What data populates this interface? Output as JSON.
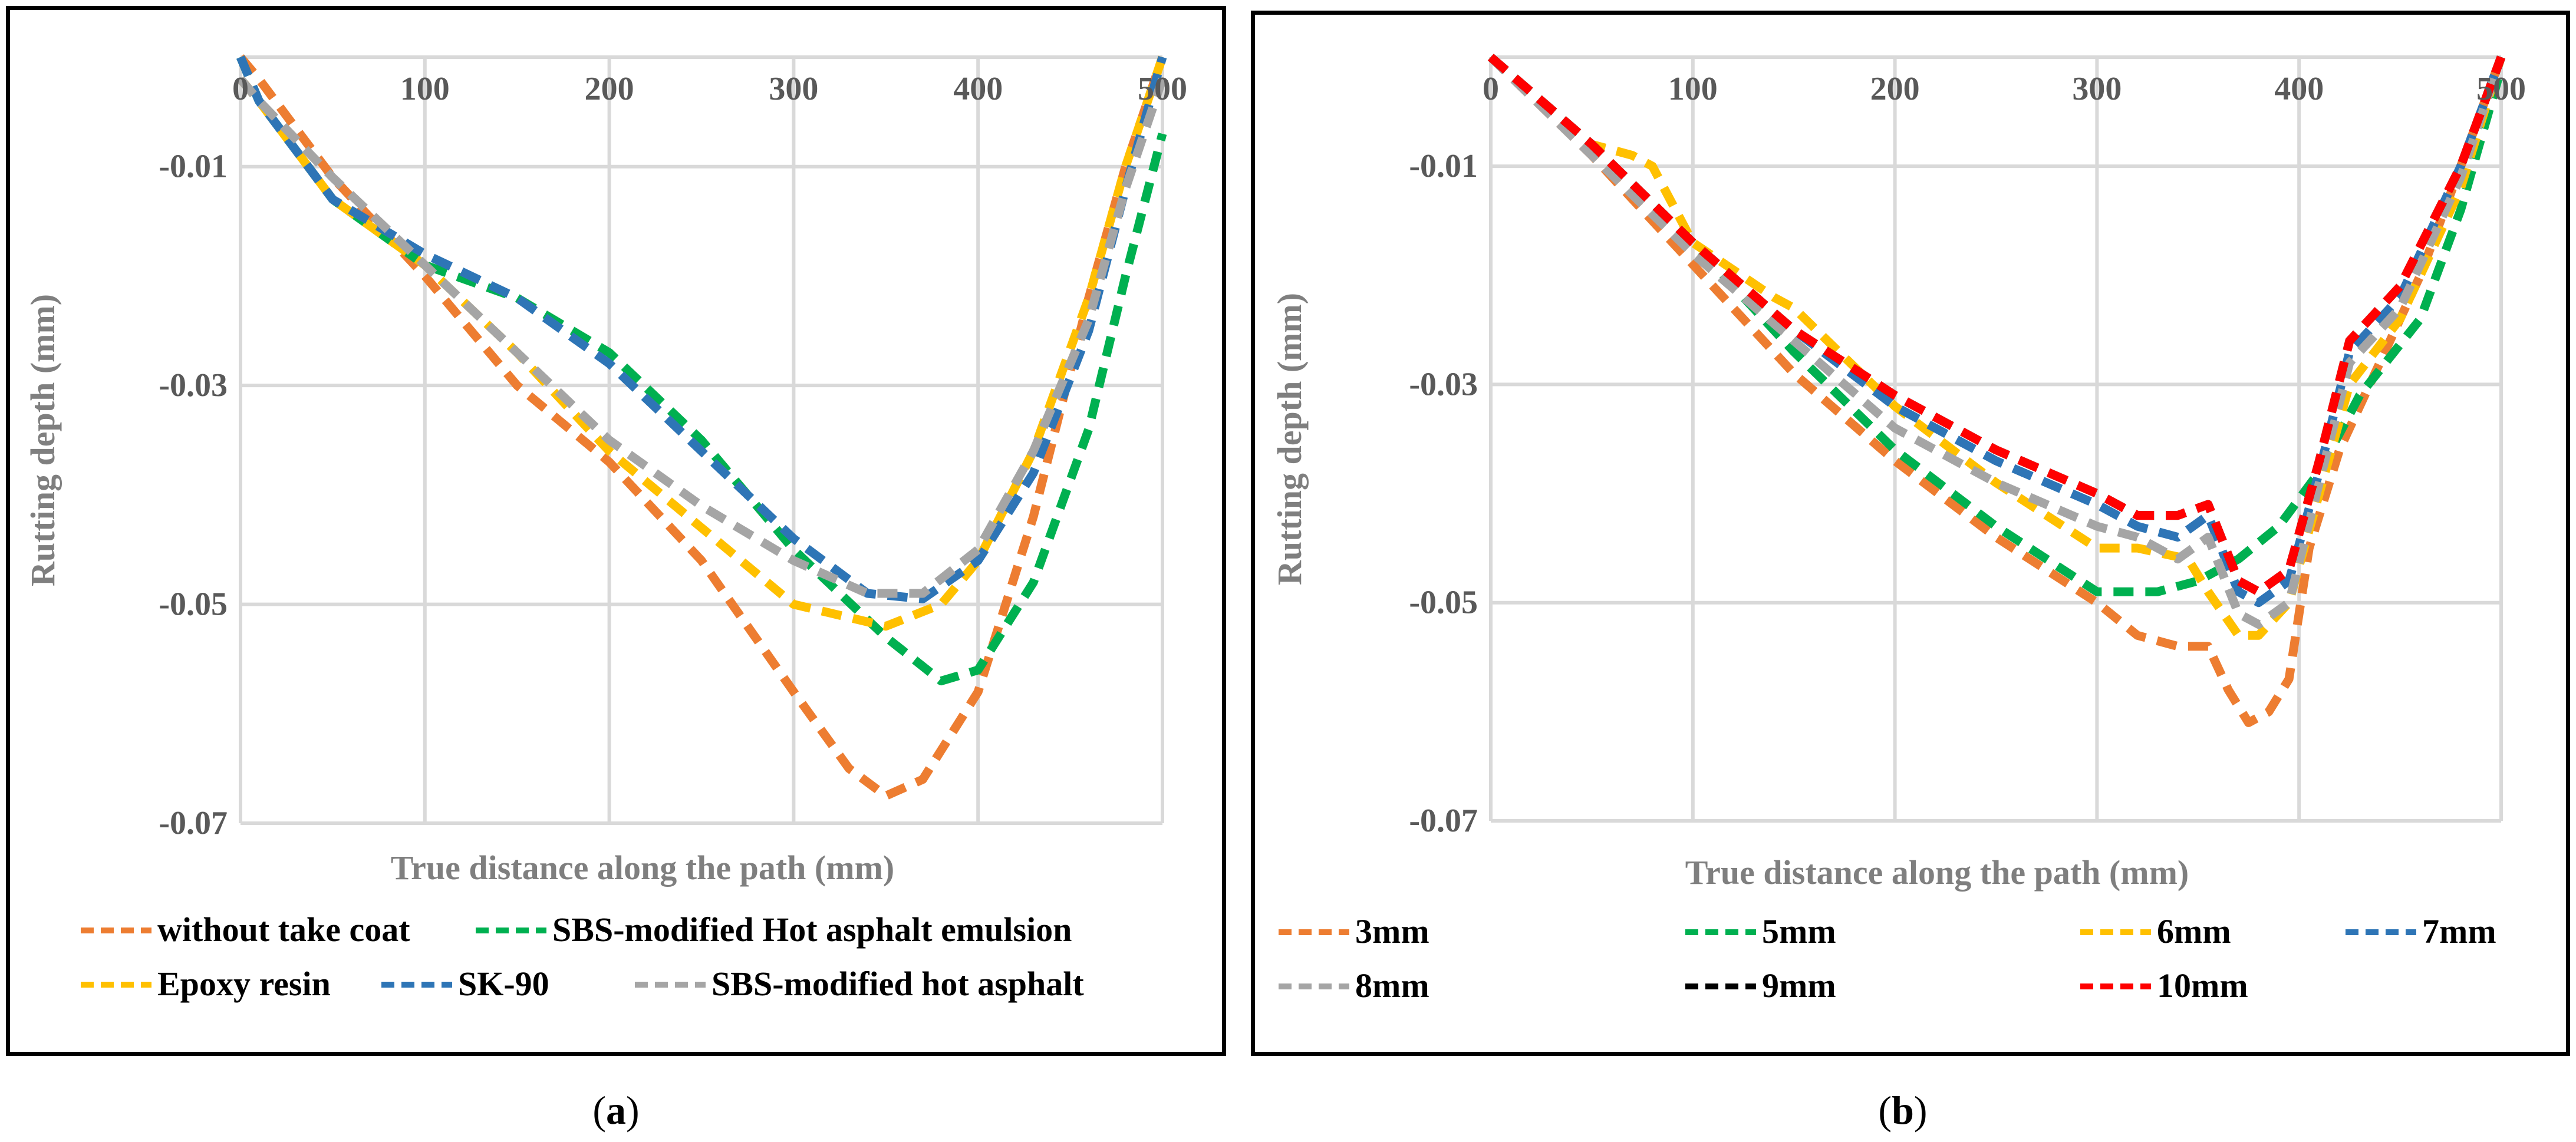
{
  "panels": [
    {
      "caption": "a",
      "chart_data": {
        "type": "line",
        "title": "",
        "xlabel": "True distance along the path (mm)",
        "ylabel": "Rutting depth (mm)",
        "xlim": [
          0,
          500
        ],
        "ylim": [
          -0.07,
          0
        ],
        "xticks": [
          0,
          100,
          200,
          300,
          400,
          500
        ],
        "xtick_labels": [
          "0",
          "100",
          "200",
          "300",
          "400",
          "500"
        ],
        "yticks": [
          -0.01,
          -0.03,
          -0.05,
          -0.07
        ],
        "ytick_labels": [
          "-0.01",
          "-0.03",
          "-0.05",
          "-0.07"
        ],
        "grid": true,
        "legend": "bottom",
        "series": [
          {
            "name": "without take coat",
            "color": "#ED7D31",
            "x": [
              0,
              10,
              50,
              100,
              150,
              200,
              250,
              300,
              330,
              350,
              370,
              400,
              430,
              460,
              480,
              500
            ],
            "y": [
              0,
              -0.002,
              -0.011,
              -0.02,
              -0.03,
              -0.037,
              -0.046,
              -0.058,
              -0.065,
              -0.0675,
              -0.066,
              -0.058,
              -0.042,
              -0.022,
              -0.01,
              0
            ]
          },
          {
            "name": "SBS-modified Hot asphalt emulsion",
            "color": "#00B050",
            "x": [
              0,
              10,
              50,
              100,
              150,
              200,
              250,
              300,
              350,
              380,
              400,
              430,
              460,
              480,
              500
            ],
            "y": [
              0,
              -0.004,
              -0.013,
              -0.019,
              -0.022,
              -0.027,
              -0.035,
              -0.045,
              -0.053,
              -0.057,
              -0.056,
              -0.048,
              -0.034,
              -0.02,
              -0.007
            ]
          },
          {
            "name": "Epoxy resin",
            "color": "#FFC000",
            "x": [
              0,
              10,
              50,
              100,
              150,
              200,
              250,
              300,
              350,
              380,
              400,
              430,
              460,
              480,
              500
            ],
            "y": [
              -0.002,
              -0.004,
              -0.013,
              -0.019,
              -0.027,
              -0.036,
              -0.043,
              -0.05,
              -0.052,
              -0.05,
              -0.046,
              -0.036,
              -0.022,
              -0.01,
              0
            ]
          },
          {
            "name": "SK-90",
            "color": "#2E75B6",
            "x": [
              0,
              10,
              50,
              100,
              150,
              200,
              250,
              300,
              340,
              370,
              400,
              430,
              460,
              480,
              500
            ],
            "y": [
              0,
              -0.004,
              -0.013,
              -0.018,
              -0.022,
              -0.028,
              -0.036,
              -0.044,
              -0.049,
              -0.0495,
              -0.046,
              -0.038,
              -0.025,
              -0.012,
              0
            ]
          },
          {
            "name": "SBS-modified hot asphalt",
            "color": "#A5A5A5",
            "x": [
              0,
              10,
              50,
              100,
              150,
              200,
              250,
              300,
              340,
              370,
              400,
              430,
              460,
              480,
              500
            ],
            "y": [
              -0.002,
              -0.004,
              -0.011,
              -0.019,
              -0.027,
              -0.035,
              -0.041,
              -0.046,
              -0.049,
              -0.049,
              -0.045,
              -0.036,
              -0.024,
              -0.012,
              -0.002
            ]
          }
        ]
      }
    },
    {
      "caption": "b",
      "chart_data": {
        "type": "line",
        "title": "",
        "xlabel": "True distance along the path (mm)",
        "ylabel": "Rutting depth (mm)",
        "xlim": [
          0,
          500
        ],
        "ylim": [
          -0.07,
          0
        ],
        "xticks": [
          0,
          100,
          200,
          300,
          400,
          500
        ],
        "xtick_labels": [
          "0",
          "100",
          "200",
          "300",
          "400",
          "500"
        ],
        "yticks": [
          -0.01,
          -0.03,
          -0.05,
          -0.07
        ],
        "ytick_labels": [
          "-0.01",
          "-0.03",
          "-0.05",
          "-0.07"
        ],
        "grid": true,
        "legend": "bottom",
        "series": [
          {
            "name": " 3mm",
            "color": "#ED7D31",
            "x": [
              0,
              50,
              100,
              150,
              200,
              250,
              300,
              320,
              340,
              355,
              365,
              375,
              385,
              395,
              405,
              420,
              440,
              460,
              480,
              500
            ],
            "y": [
              0,
              -0.009,
              -0.019,
              -0.029,
              -0.037,
              -0.044,
              -0.05,
              -0.053,
              -0.054,
              -0.054,
              -0.058,
              -0.061,
              -0.06,
              -0.057,
              -0.045,
              -0.036,
              -0.028,
              -0.02,
              -0.01,
              0
            ]
          },
          {
            "name": "5mm",
            "color": "#00B050",
            "x": [
              0,
              50,
              100,
              150,
              200,
              250,
              300,
              330,
              350,
              370,
              390,
              410,
              430,
              460,
              480,
              500
            ],
            "y": [
              0,
              -0.008,
              -0.017,
              -0.027,
              -0.036,
              -0.043,
              -0.049,
              -0.049,
              -0.048,
              -0.046,
              -0.043,
              -0.038,
              -0.031,
              -0.024,
              -0.014,
              -0.001
            ]
          },
          {
            "name": "6mm",
            "color": "#FFC000",
            "x": [
              0,
              50,
              70,
              80,
              100,
              140,
              150,
              200,
              250,
              300,
              320,
              345,
              355,
              370,
              380,
              395,
              410,
              425,
              450,
              480,
              500
            ],
            "y": [
              0,
              -0.008,
              -0.009,
              -0.01,
              -0.017,
              -0.022,
              -0.023,
              -0.032,
              -0.039,
              -0.045,
              -0.045,
              -0.046,
              -0.049,
              -0.053,
              -0.053,
              -0.05,
              -0.04,
              -0.03,
              -0.024,
              -0.012,
              0
            ]
          },
          {
            "name": "7mm",
            "color": "#2E75B6",
            "x": [
              0,
              50,
              100,
              150,
              200,
              250,
              300,
              320,
              340,
              355,
              370,
              380,
              395,
              410,
              425,
              450,
              480,
              500
            ],
            "y": [
              0,
              -0.008,
              -0.017,
              -0.025,
              -0.032,
              -0.037,
              -0.041,
              -0.043,
              -0.044,
              -0.042,
              -0.049,
              -0.05,
              -0.048,
              -0.038,
              -0.027,
              -0.022,
              -0.01,
              0
            ]
          },
          {
            "name": "8mm",
            "color": "#A5A5A5",
            "x": [
              0,
              50,
              100,
              150,
              200,
              250,
              300,
              320,
              340,
              355,
              370,
              380,
              395,
              410,
              425,
              450,
              480,
              500
            ],
            "y": [
              0,
              -0.009,
              -0.018,
              -0.026,
              -0.034,
              -0.039,
              -0.043,
              -0.044,
              -0.046,
              -0.044,
              -0.051,
              -0.052,
              -0.05,
              -0.039,
              -0.028,
              -0.023,
              -0.011,
              0
            ]
          },
          {
            "name": "9mm",
            "color": "#000000",
            "x": [
              0,
              50,
              100,
              150,
              200,
              250,
              300,
              320,
              340,
              355,
              370,
              380,
              395,
              410,
              425,
              450,
              480,
              500
            ],
            "y": [
              0,
              -0.008,
              -0.017,
              -0.025,
              -0.031,
              -0.036,
              -0.04,
              -0.042,
              -0.042,
              -0.041,
              -0.048,
              -0.049,
              -0.047,
              -0.037,
              -0.026,
              -0.021,
              -0.01,
              0
            ]
          },
          {
            "name": "10mm",
            "color": "#FF0000",
            "x": [
              0,
              50,
              100,
              150,
              200,
              250,
              300,
              320,
              340,
              355,
              370,
              380,
              395,
              410,
              425,
              450,
              480,
              500
            ],
            "y": [
              0,
              -0.008,
              -0.017,
              -0.025,
              -0.031,
              -0.036,
              -0.04,
              -0.042,
              -0.042,
              -0.041,
              -0.048,
              -0.049,
              -0.047,
              -0.037,
              -0.026,
              -0.021,
              -0.01,
              0
            ]
          }
        ]
      }
    }
  ]
}
